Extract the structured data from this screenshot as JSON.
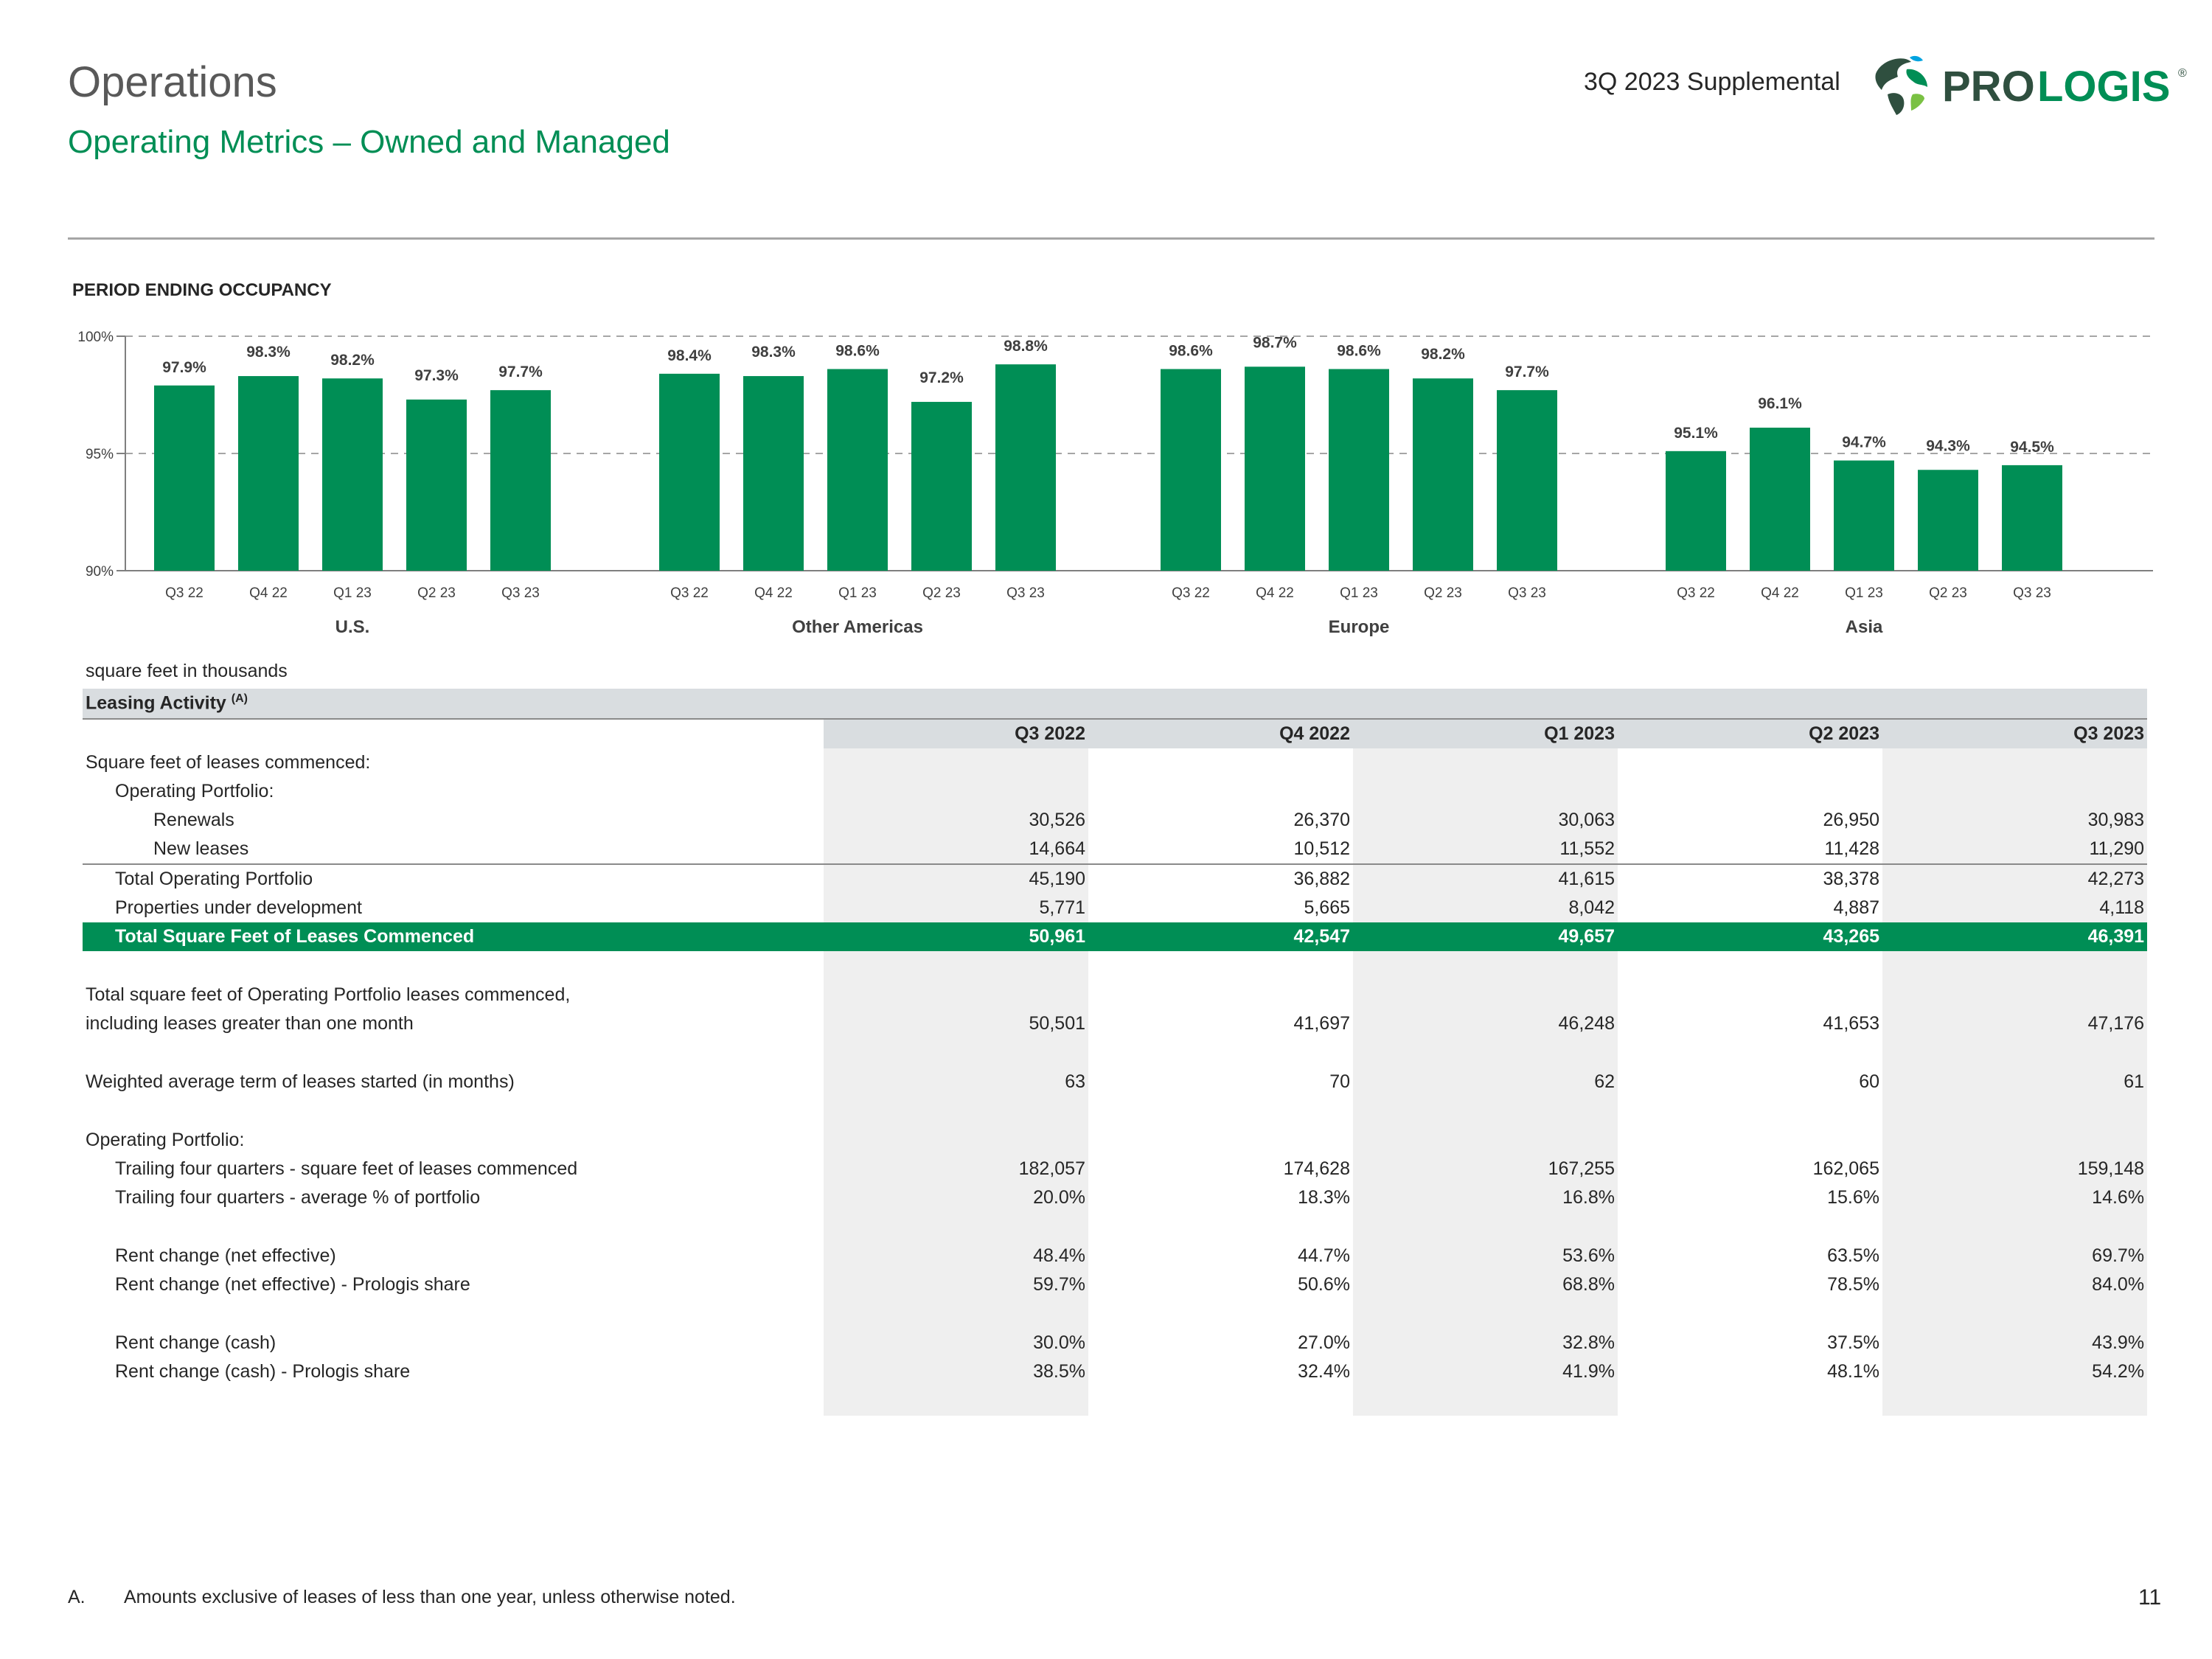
{
  "header": {
    "title": "Operations",
    "subtitle": "Operating Metrics – Owned and Managed",
    "supplemental": "3Q 2023 Supplemental",
    "logo_text_bold": "PRO",
    "logo_text_light": "LOGIS",
    "logo_mark": "®"
  },
  "occupancy": {
    "title": "PERIOD ENDING OCCUPANCY"
  },
  "colors": {
    "green": "#008e55",
    "gray_text": "#595959",
    "header_fill": "#d9dde0",
    "shade": "#efefef"
  },
  "chart_data": {
    "type": "bar",
    "title": "PERIOD ENDING OCCUPANCY",
    "ylim": [
      90,
      100
    ],
    "yticks": [
      "90%",
      "95%",
      "100%"
    ],
    "ytick_values": [
      90,
      95,
      100
    ],
    "grid": "dashed lines at 95% and 100%",
    "groups": [
      {
        "name": "U.S.",
        "categories": [
          "Q3 22",
          "Q4 22",
          "Q1 23",
          "Q2 23",
          "Q3 23"
        ],
        "values": [
          97.9,
          98.3,
          98.2,
          97.3,
          97.7
        ],
        "labels": [
          "97.9%",
          "98.3%",
          "98.2%",
          "97.3%",
          "97.7%"
        ]
      },
      {
        "name": "Other Americas",
        "categories": [
          "Q3 22",
          "Q4 22",
          "Q1 23",
          "Q2 23",
          "Q3 23"
        ],
        "values": [
          98.4,
          98.3,
          98.6,
          97.2,
          98.8
        ],
        "labels": [
          "98.4%",
          "98.3%",
          "98.6%",
          "97.2%",
          "98.8%"
        ]
      },
      {
        "name": "Europe",
        "categories": [
          "Q3 22",
          "Q4 22",
          "Q1 23",
          "Q2 23",
          "Q3 23"
        ],
        "values": [
          98.6,
          98.7,
          98.6,
          98.2,
          97.7
        ],
        "labels": [
          "98.6%",
          "98.7%",
          "98.6%",
          "98.2%",
          "97.7%"
        ]
      },
      {
        "name": "Asia",
        "categories": [
          "Q3 22",
          "Q4 22",
          "Q1 23",
          "Q2 23",
          "Q3 23"
        ],
        "values": [
          95.1,
          96.1,
          94.7,
          94.3,
          94.5
        ],
        "labels": [
          "95.1%",
          "96.1%",
          "94.7%",
          "94.3%",
          "94.5%"
        ]
      }
    ]
  },
  "table": {
    "units": "square feet in thousands",
    "section_title": "Leasing Activity",
    "section_note": "(A)",
    "columns": [
      "Q3 2022",
      "Q4 2022",
      "Q1 2023",
      "Q2 2023",
      "Q3 2023"
    ],
    "rows": [
      {
        "label": "Square feet of leases commenced:",
        "indent": 0,
        "values": [
          "",
          "",
          "",
          "",
          ""
        ]
      },
      {
        "label": "Operating Portfolio:",
        "indent": 1,
        "values": [
          "",
          "",
          "",
          "",
          ""
        ]
      },
      {
        "label": "Renewals",
        "indent": 2,
        "values": [
          "30,526",
          "26,370",
          "30,063",
          "26,950",
          "30,983"
        ]
      },
      {
        "label": "New leases",
        "indent": 2,
        "values": [
          "14,664",
          "10,512",
          "11,552",
          "11,428",
          "11,290"
        ],
        "underline": true
      },
      {
        "label": "Total Operating Portfolio",
        "indent": 1,
        "values": [
          "45,190",
          "36,882",
          "41,615",
          "38,378",
          "42,273"
        ]
      },
      {
        "label": "Properties under development",
        "indent": 1,
        "values": [
          "5,771",
          "5,665",
          "8,042",
          "4,887",
          "4,118"
        ]
      },
      {
        "label": "Total Square Feet of Leases Commenced",
        "indent": 1,
        "values": [
          "50,961",
          "42,547",
          "49,657",
          "43,265",
          "46,391"
        ],
        "total": true
      },
      {
        "gap": true
      },
      {
        "label": "Total square feet of Operating Portfolio leases commenced,",
        "indent": 0,
        "values": [
          "",
          "",
          "",
          "",
          ""
        ]
      },
      {
        "label": "including leases greater than one month",
        "indent": 0,
        "values": [
          "50,501",
          "41,697",
          "46,248",
          "41,653",
          "47,176"
        ]
      },
      {
        "gap": true
      },
      {
        "label": "Weighted average term of leases started (in months)",
        "indent": 0,
        "values": [
          "63",
          "70",
          "62",
          "60",
          "61"
        ]
      },
      {
        "gap": true
      },
      {
        "label": "Operating Portfolio:",
        "indent": 0,
        "values": [
          "",
          "",
          "",
          "",
          ""
        ]
      },
      {
        "label": "Trailing four quarters - square feet of leases commenced",
        "indent": 1,
        "values": [
          "182,057",
          "174,628",
          "167,255",
          "162,065",
          "159,148"
        ]
      },
      {
        "label": "Trailing four quarters - average % of portfolio",
        "indent": 1,
        "values": [
          "20.0%",
          "18.3%",
          "16.8%",
          "15.6%",
          "14.6%"
        ]
      },
      {
        "gap": true
      },
      {
        "label": "Rent change (net effective)",
        "indent": 1,
        "values": [
          "48.4%",
          "44.7%",
          "53.6%",
          "63.5%",
          "69.7%"
        ]
      },
      {
        "label": "Rent change (net effective) - Prologis share",
        "indent": 1,
        "values": [
          "59.7%",
          "50.6%",
          "68.8%",
          "78.5%",
          "84.0%"
        ]
      },
      {
        "gap": true
      },
      {
        "label": "Rent change (cash)",
        "indent": 1,
        "values": [
          "30.0%",
          "27.0%",
          "32.8%",
          "37.5%",
          "43.9%"
        ]
      },
      {
        "label": "Rent change (cash) - Prologis share",
        "indent": 1,
        "values": [
          "38.5%",
          "32.4%",
          "41.9%",
          "48.1%",
          "54.2%"
        ]
      },
      {
        "gap": true
      }
    ]
  },
  "footnote": {
    "letter": "A.",
    "text": "Amounts exclusive of leases of less than one year, unless otherwise noted."
  },
  "page_number": "11"
}
